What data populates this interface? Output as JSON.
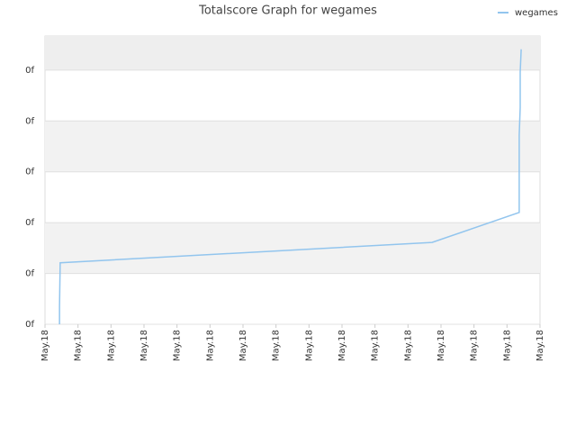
{
  "chart_data": {
    "type": "line",
    "title": "Totalscore Graph for wegames",
    "series": [
      {
        "name": "wegames",
        "color": "#92c5ee",
        "x": [
          0.44,
          0.44,
          0.46,
          11.73,
          14.37,
          14.37,
          14.4,
          14.4,
          14.43
        ],
        "values": [
          0,
          0.35,
          1.21,
          1.61,
          2.2,
          3.72,
          4.26,
          4.96,
          5.41
        ]
      }
    ],
    "xlim": [
      0,
      15
    ],
    "xticks": [
      {
        "value": 0,
        "label": "May.18"
      },
      {
        "value": 1,
        "label": "May.18"
      },
      {
        "value": 2,
        "label": "May.18"
      },
      {
        "value": 3,
        "label": "May.18"
      },
      {
        "value": 4,
        "label": "May.18"
      },
      {
        "value": 5,
        "label": "May.18"
      },
      {
        "value": 6,
        "label": "May.18"
      },
      {
        "value": 7,
        "label": "May.18"
      },
      {
        "value": 8,
        "label": "May.18"
      },
      {
        "value": 9,
        "label": "May.18"
      },
      {
        "value": 10,
        "label": "May.18"
      },
      {
        "value": 11,
        "label": "May.18"
      },
      {
        "value": 12,
        "label": "May.18"
      },
      {
        "value": 13,
        "label": "May.18"
      },
      {
        "value": 14,
        "label": "May.18"
      },
      {
        "value": 15,
        "label": "May.18"
      }
    ],
    "ylim": [
      0,
      5.67
    ],
    "yticks": [
      {
        "value": 0,
        "label": "0f"
      },
      {
        "value": 1,
        "label": "0f"
      },
      {
        "value": 2,
        "label": "0f"
      },
      {
        "value": 3,
        "label": "0f"
      },
      {
        "value": 4,
        "label": "0f"
      },
      {
        "value": 5,
        "label": "0f"
      }
    ],
    "grid": true,
    "legend": "top-right"
  }
}
